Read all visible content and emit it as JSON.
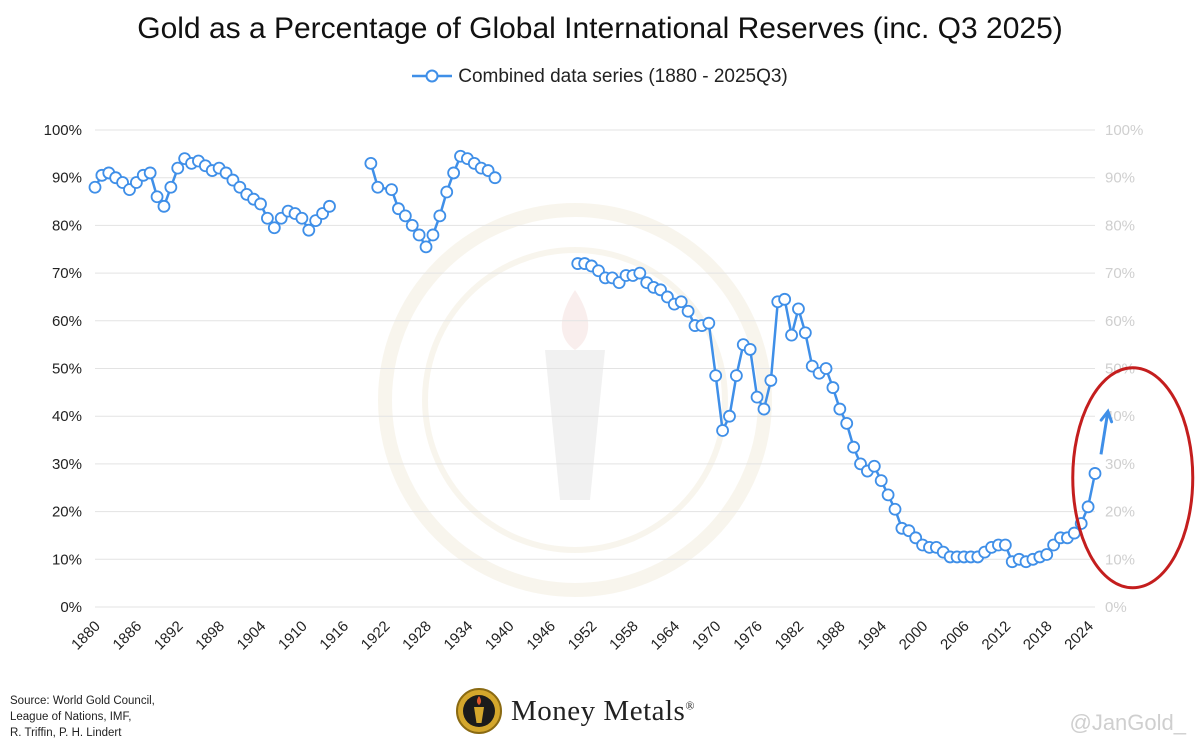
{
  "title": "Gold as a Percentage of Global International Reserves (inc. Q3 2025)",
  "legend": {
    "label": "Combined data series (1880 - 2025Q3)"
  },
  "source": {
    "lines": [
      "Source: World Gold Council,",
      "League of Nations, IMF,",
      "R. Triffin, P. H. Lindert"
    ]
  },
  "brand": {
    "name": "Money Metals",
    "mark": "®"
  },
  "handle": "@JanGold_",
  "colors": {
    "line": "#3f8fe8",
    "grid": "#e3e3e3",
    "highlight": "#c41e1e"
  },
  "chart_data": {
    "type": "line",
    "title": "Gold as a Percentage of Global International Reserves (inc. Q3 2025)",
    "xlabel": "",
    "ylabel": "",
    "xlim": [
      1880,
      2025
    ],
    "ylim": [
      0,
      1
    ],
    "x_ticks": [
      "1880",
      "1886",
      "1892",
      "1898",
      "1904",
      "1910",
      "1916",
      "1922",
      "1928",
      "1934",
      "1940",
      "1946",
      "1952",
      "1958",
      "1964",
      "1970",
      "1976",
      "1982",
      "1988",
      "1994",
      "2000",
      "2006",
      "2012",
      "2018",
      "2024"
    ],
    "y_ticks": [
      "0%",
      "10%",
      "20%",
      "30%",
      "40%",
      "50%",
      "60%",
      "70%",
      "80%",
      "90%",
      "100%"
    ],
    "legend_position": "top-center",
    "grid": true,
    "series": [
      {
        "name": "Combined data series (1880 - 2025Q3)",
        "segments": [
          [
            [
              1880,
              0.88
            ],
            [
              1881,
              0.905
            ],
            [
              1882,
              0.91
            ],
            [
              1883,
              0.9
            ],
            [
              1884,
              0.89
            ],
            [
              1885,
              0.875
            ],
            [
              1886,
              0.89
            ],
            [
              1887,
              0.905
            ],
            [
              1888,
              0.91
            ],
            [
              1889,
              0.86
            ],
            [
              1890,
              0.84
            ],
            [
              1891,
              0.88
            ],
            [
              1892,
              0.92
            ],
            [
              1893,
              0.94
            ],
            [
              1894,
              0.93
            ],
            [
              1895,
              0.935
            ],
            [
              1896,
              0.925
            ],
            [
              1897,
              0.915
            ],
            [
              1898,
              0.92
            ],
            [
              1899,
              0.91
            ],
            [
              1900,
              0.895
            ],
            [
              1901,
              0.88
            ],
            [
              1902,
              0.865
            ],
            [
              1903,
              0.855
            ],
            [
              1904,
              0.845
            ],
            [
              1905,
              0.815
            ],
            [
              1906,
              0.795
            ],
            [
              1907,
              0.815
            ],
            [
              1908,
              0.83
            ],
            [
              1909,
              0.825
            ],
            [
              1910,
              0.815
            ],
            [
              1911,
              0.79
            ],
            [
              1912,
              0.81
            ],
            [
              1913,
              0.825
            ],
            [
              1914,
              0.84
            ]
          ],
          [
            [
              1920,
              0.93
            ],
            [
              1921,
              0.88
            ],
            [
              1923,
              0.875
            ],
            [
              1924,
              0.835
            ],
            [
              1925,
              0.82
            ],
            [
              1926,
              0.8
            ],
            [
              1927,
              0.78
            ],
            [
              1928,
              0.755
            ],
            [
              1929,
              0.78
            ],
            [
              1930,
              0.82
            ],
            [
              1931,
              0.87
            ],
            [
              1932,
              0.91
            ],
            [
              1933,
              0.945
            ],
            [
              1934,
              0.94
            ],
            [
              1935,
              0.93
            ],
            [
              1936,
              0.92
            ],
            [
              1937,
              0.915
            ],
            [
              1938,
              0.9
            ]
          ],
          [
            [
              1950,
              0.72
            ],
            [
              1951,
              0.72
            ],
            [
              1952,
              0.715
            ],
            [
              1953,
              0.705
            ],
            [
              1954,
              0.69
            ],
            [
              1955,
              0.69
            ],
            [
              1956,
              0.68
            ],
            [
              1957,
              0.695
            ],
            [
              1958,
              0.695
            ],
            [
              1959,
              0.7
            ],
            [
              1960,
              0.68
            ],
            [
              1961,
              0.67
            ],
            [
              1962,
              0.665
            ],
            [
              1963,
              0.65
            ],
            [
              1964,
              0.635
            ],
            [
              1965,
              0.64
            ],
            [
              1966,
              0.62
            ],
            [
              1967,
              0.59
            ],
            [
              1968,
              0.59
            ],
            [
              1969,
              0.595
            ],
            [
              1970,
              0.485
            ],
            [
              1971,
              0.37
            ],
            [
              1972,
              0.4
            ],
            [
              1973,
              0.485
            ],
            [
              1974,
              0.55
            ],
            [
              1975,
              0.54
            ],
            [
              1976,
              0.44
            ],
            [
              1977,
              0.415
            ],
            [
              1978,
              0.475
            ],
            [
              1979,
              0.64
            ],
            [
              1980,
              0.645
            ],
            [
              1981,
              0.57
            ],
            [
              1982,
              0.625
            ],
            [
              1983,
              0.575
            ],
            [
              1984,
              0.505
            ],
            [
              1985,
              0.49
            ],
            [
              1986,
              0.5
            ],
            [
              1987,
              0.46
            ],
            [
              1988,
              0.415
            ],
            [
              1989,
              0.385
            ],
            [
              1990,
              0.335
            ],
            [
              1991,
              0.3
            ],
            [
              1992,
              0.285
            ],
            [
              1993,
              0.295
            ],
            [
              1994,
              0.265
            ],
            [
              1995,
              0.235
            ],
            [
              1996,
              0.205
            ],
            [
              1997,
              0.165
            ],
            [
              1998,
              0.16
            ],
            [
              1999,
              0.145
            ],
            [
              2000,
              0.13
            ],
            [
              2001,
              0.125
            ],
            [
              2002,
              0.125
            ],
            [
              2003,
              0.115
            ],
            [
              2004,
              0.105
            ],
            [
              2005,
              0.105
            ],
            [
              2006,
              0.105
            ],
            [
              2007,
              0.105
            ],
            [
              2008,
              0.105
            ],
            [
              2009,
              0.115
            ],
            [
              2010,
              0.125
            ],
            [
              2011,
              0.13
            ],
            [
              2012,
              0.13
            ],
            [
              2013,
              0.095
            ],
            [
              2014,
              0.1
            ],
            [
              2015,
              0.095
            ],
            [
              2016,
              0.1
            ],
            [
              2017,
              0.105
            ],
            [
              2018,
              0.11
            ],
            [
              2019,
              0.13
            ],
            [
              2020,
              0.145
            ],
            [
              2021,
              0.145
            ],
            [
              2022,
              0.155
            ],
            [
              2023,
              0.175
            ],
            [
              2024,
              0.21
            ],
            [
              2025,
              0.28
            ]
          ]
        ]
      }
    ],
    "annotations": [
      {
        "type": "arrow",
        "direction": "up",
        "from": [
          2025,
          0.32
        ],
        "to": [
          2026,
          0.41
        ]
      },
      {
        "type": "ellipse-highlight",
        "around": [
          [
            2020,
            0.0
          ],
          [
            2025,
            0.5
          ]
        ]
      }
    ]
  }
}
